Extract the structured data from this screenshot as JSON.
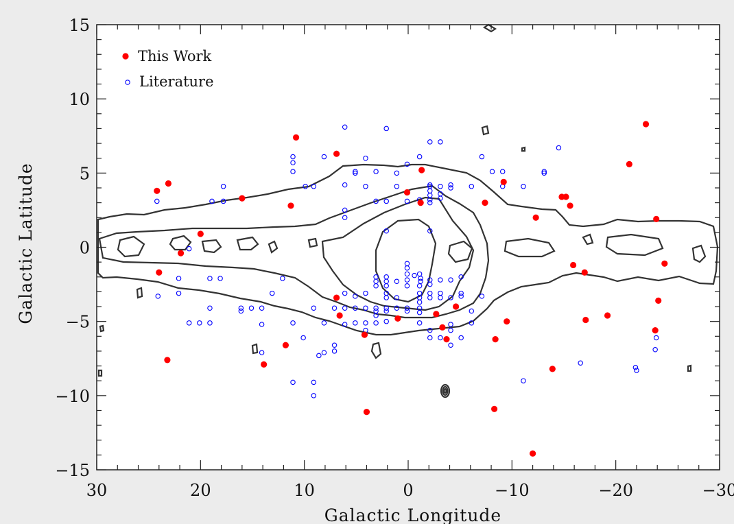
{
  "chart_data": {
    "type": "scatter",
    "xlabel": "Galactic Longitude",
    "ylabel": "Galactic Latitude",
    "xlim": [
      30,
      -30
    ],
    "ylim": [
      -15,
      15
    ],
    "x_ticks": [
      30,
      20,
      10,
      0,
      -10,
      -20,
      -30
    ],
    "y_ticks": [
      15,
      10,
      5,
      0,
      -5,
      -10,
      -15
    ],
    "x_tick_labels": [
      "30",
      "20",
      "10",
      "0",
      "−10",
      "−20",
      "−30"
    ],
    "y_tick_labels": [
      "15",
      "10",
      "5",
      "0",
      "−5",
      "−10",
      "−15"
    ],
    "grid": false,
    "legend_position": "top-left",
    "series": [
      {
        "name": "This Work",
        "marker": "filled-circle",
        "color": "#ff0000",
        "points": [
          [
            24.2,
            3.8
          ],
          [
            23.1,
            4.3
          ],
          [
            16.0,
            3.3
          ],
          [
            11.3,
            2.8
          ],
          [
            10.8,
            7.4
          ],
          [
            6.9,
            6.3
          ],
          [
            -1.3,
            5.2
          ],
          [
            0.1,
            3.7
          ],
          [
            -1.2,
            3.0
          ],
          [
            -7.4,
            3.0
          ],
          [
            -9.2,
            4.4
          ],
          [
            -12.3,
            2.0
          ],
          [
            -14.8,
            3.4
          ],
          [
            -15.2,
            3.4
          ],
          [
            -15.6,
            2.8
          ],
          [
            -21.3,
            5.6
          ],
          [
            -22.9,
            8.3
          ],
          [
            -23.9,
            1.9
          ],
          [
            -24.7,
            -1.1
          ],
          [
            -24.1,
            -3.6
          ],
          [
            -23.8,
            -5.6
          ],
          [
            -19.2,
            -4.6
          ],
          [
            -17.1,
            -4.9
          ],
          [
            -17.0,
            -1.7
          ],
          [
            -15.9,
            -1.2
          ],
          [
            -13.9,
            -8.2
          ],
          [
            -12.0,
            -13.9
          ],
          [
            -9.5,
            -5.0
          ],
          [
            -8.4,
            -6.2
          ],
          [
            -8.3,
            -10.9
          ],
          [
            -4.6,
            -4.0
          ],
          [
            -3.7,
            -6.2
          ],
          [
            -3.3,
            -5.4
          ],
          [
            -2.7,
            -4.5
          ],
          [
            1.0,
            -4.8
          ],
          [
            4.2,
            -5.9
          ],
          [
            4.0,
            -11.1
          ],
          [
            6.6,
            -4.6
          ],
          [
            6.9,
            -3.4
          ],
          [
            11.8,
            -6.6
          ],
          [
            13.9,
            -7.9
          ],
          [
            23.2,
            -7.6
          ],
          [
            24.0,
            -1.7
          ],
          [
            21.9,
            -0.4
          ],
          [
            20.0,
            0.9
          ]
        ]
      },
      {
        "name": "Literature",
        "marker": "open-circle",
        "color": "#0000ff",
        "points": [
          [
            24.2,
            3.1
          ],
          [
            18.9,
            3.1
          ],
          [
            17.8,
            3.1
          ],
          [
            17.8,
            4.1
          ],
          [
            11.1,
            5.1
          ],
          [
            11.1,
            5.7
          ],
          [
            11.1,
            6.1
          ],
          [
            9.9,
            4.1
          ],
          [
            9.1,
            4.1
          ],
          [
            8.1,
            6.1
          ],
          [
            6.1,
            8.1
          ],
          [
            6.1,
            4.2
          ],
          [
            6.1,
            2.5
          ],
          [
            6.1,
            2.0
          ],
          [
            5.1,
            5.1
          ],
          [
            5.1,
            5.0
          ],
          [
            4.1,
            4.1
          ],
          [
            4.1,
            6.0
          ],
          [
            3.1,
            5.1
          ],
          [
            3.1,
            3.1
          ],
          [
            2.1,
            8.0
          ],
          [
            2.1,
            3.1
          ],
          [
            2.1,
            1.1
          ],
          [
            1.1,
            5.0
          ],
          [
            1.1,
            4.1
          ],
          [
            0.1,
            5.6
          ],
          [
            0.1,
            3.1
          ],
          [
            -1.1,
            6.1
          ],
          [
            -1.1,
            3.2
          ],
          [
            -2.1,
            7.1
          ],
          [
            -2.1,
            4.2
          ],
          [
            -2.1,
            4.1
          ],
          [
            -2.1,
            3.8
          ],
          [
            -2.1,
            3.5
          ],
          [
            -2.1,
            3.2
          ],
          [
            -2.1,
            3.0
          ],
          [
            -2.1,
            1.1
          ],
          [
            -3.1,
            7.1
          ],
          [
            -3.1,
            4.1
          ],
          [
            -3.1,
            3.6
          ],
          [
            -3.1,
            3.3
          ],
          [
            -4.1,
            4.2
          ],
          [
            -4.1,
            4.0
          ],
          [
            -6.1,
            4.1
          ],
          [
            -7.1,
            6.1
          ],
          [
            -8.1,
            5.1
          ],
          [
            -9.1,
            5.1
          ],
          [
            -9.1,
            4.1
          ],
          [
            -11.1,
            4.1
          ],
          [
            -13.1,
            5.0
          ],
          [
            -13.1,
            5.1
          ],
          [
            -14.5,
            6.7
          ],
          [
            0.1,
            -1.1
          ],
          [
            0.1,
            -1.4
          ],
          [
            0.1,
            -1.8
          ],
          [
            -0.6,
            -1.9
          ],
          [
            -1.1,
            -1.8
          ],
          [
            -1.2,
            -2.1
          ],
          [
            -1.2,
            -2.3
          ],
          [
            -1.1,
            -2.6
          ],
          [
            -1.1,
            -3.1
          ],
          [
            -1.1,
            -3.4
          ],
          [
            -1.1,
            -3.7
          ],
          [
            0.1,
            -2.2
          ],
          [
            0.1,
            -2.6
          ],
          [
            1.1,
            -2.3
          ],
          [
            1.1,
            -3.4
          ],
          [
            2.1,
            -2.0
          ],
          [
            2.1,
            -2.3
          ],
          [
            2.1,
            -2.6
          ],
          [
            3.1,
            -2.0
          ],
          [
            3.1,
            -2.3
          ],
          [
            3.1,
            -2.6
          ],
          [
            -2.1,
            -2.2
          ],
          [
            -2.1,
            -2.5
          ],
          [
            -3.1,
            -2.2
          ],
          [
            -3.1,
            -3.1
          ],
          [
            -4.1,
            -2.2
          ],
          [
            -4.1,
            -3.4
          ],
          [
            -5.1,
            -2.0
          ],
          [
            -5.1,
            -3.1
          ],
          [
            -5.1,
            -3.3
          ],
          [
            -3.1,
            -3.4
          ],
          [
            -2.1,
            -3.1
          ],
          [
            -2.1,
            -3.4
          ],
          [
            -1.1,
            -4.1
          ],
          [
            -1.1,
            -4.4
          ],
          [
            0.1,
            -4.1
          ],
          [
            0.1,
            -4.3
          ],
          [
            1.1,
            -4.1
          ],
          [
            2.1,
            -3.1
          ],
          [
            2.1,
            -3.4
          ],
          [
            2.1,
            -4.1
          ],
          [
            2.1,
            -4.3
          ],
          [
            2.1,
            -5.0
          ],
          [
            3.1,
            -4.1
          ],
          [
            3.1,
            -4.3
          ],
          [
            3.1,
            -4.6
          ],
          [
            3.1,
            -5.1
          ],
          [
            4.1,
            -3.1
          ],
          [
            4.1,
            -4.1
          ],
          [
            4.1,
            -5.1
          ],
          [
            4.1,
            -5.6
          ],
          [
            5.1,
            -3.3
          ],
          [
            5.1,
            -4.1
          ],
          [
            5.1,
            -5.1
          ],
          [
            6.1,
            -3.1
          ],
          [
            6.1,
            -4.1
          ],
          [
            6.1,
            -5.2
          ],
          [
            7.1,
            -4.1
          ],
          [
            7.1,
            -6.6
          ],
          [
            7.1,
            -7.0
          ],
          [
            8.1,
            -5.1
          ],
          [
            8.1,
            -7.1
          ],
          [
            8.6,
            -7.3
          ],
          [
            9.1,
            -4.1
          ],
          [
            9.1,
            -9.1
          ],
          [
            9.1,
            -10.0
          ],
          [
            10.1,
            -6.1
          ],
          [
            11.1,
            -5.1
          ],
          [
            11.1,
            -9.1
          ],
          [
            12.1,
            -2.1
          ],
          [
            13.1,
            -3.1
          ],
          [
            14.1,
            -4.1
          ],
          [
            14.1,
            -5.2
          ],
          [
            14.1,
            -7.1
          ],
          [
            15.1,
            -4.1
          ],
          [
            16.1,
            -4.1
          ],
          [
            16.1,
            -4.3
          ],
          [
            18.1,
            -2.1
          ],
          [
            19.1,
            -2.1
          ],
          [
            19.1,
            -4.1
          ],
          [
            19.1,
            -5.1
          ],
          [
            20.1,
            -5.1
          ],
          [
            21.1,
            -5.1
          ],
          [
            21.1,
            -0.1
          ],
          [
            22.1,
            -2.1
          ],
          [
            22.1,
            -3.1
          ],
          [
            24.1,
            -3.3
          ],
          [
            -1.1,
            -5.1
          ],
          [
            -2.1,
            -5.6
          ],
          [
            -2.1,
            -6.1
          ],
          [
            -3.1,
            -6.1
          ],
          [
            -4.1,
            -5.2
          ],
          [
            -4.1,
            -5.6
          ],
          [
            -4.1,
            -6.6
          ],
          [
            -5.1,
            -6.1
          ],
          [
            -6.1,
            -4.3
          ],
          [
            -6.1,
            -5.1
          ],
          [
            -7.1,
            -3.3
          ],
          [
            -11.1,
            -9.0
          ],
          [
            -16.6,
            -7.8
          ],
          [
            -21.9,
            -8.1
          ],
          [
            -22.0,
            -8.3
          ],
          [
            -23.9,
            -6.1
          ],
          [
            -23.8,
            -6.9
          ]
        ]
      }
    ]
  }
}
